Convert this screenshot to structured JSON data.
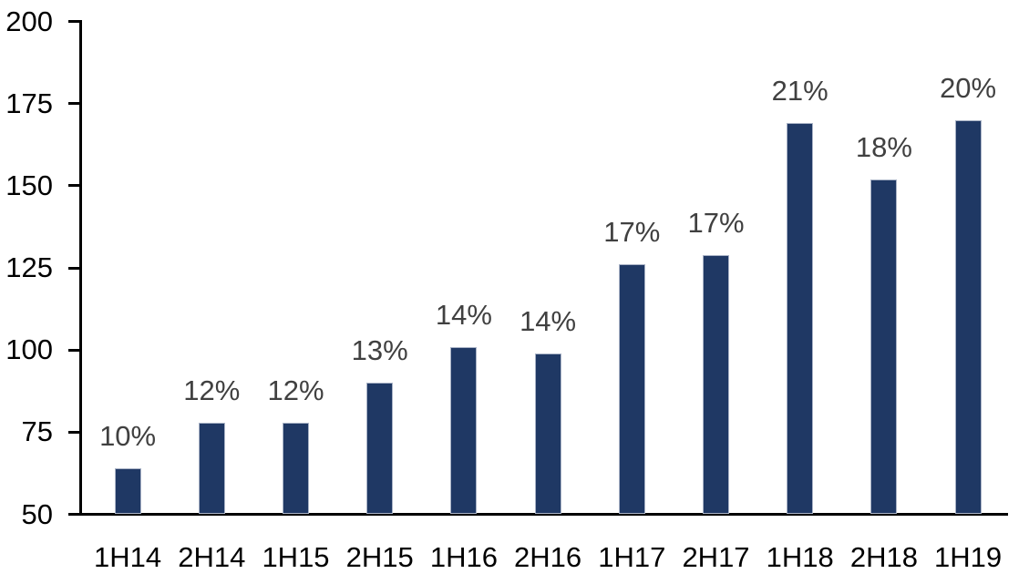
{
  "chart_data": {
    "type": "bar",
    "categories": [
      "1H14",
      "2H14",
      "1H15",
      "2H15",
      "1H16",
      "2H16",
      "1H17",
      "2H17",
      "1H18",
      "2H18",
      "1H19"
    ],
    "values": [
      64,
      78,
      78,
      90,
      101,
      99,
      126,
      129,
      169,
      152,
      170
    ],
    "bar_labels": [
      "10%",
      "12%",
      "12%",
      "13%",
      "14%",
      "14%",
      "17%",
      "17%",
      "21%",
      "18%",
      "20%"
    ],
    "title": "",
    "xlabel": "",
    "ylabel": "",
    "ylim": [
      50,
      200
    ],
    "yticks": [
      50,
      75,
      100,
      125,
      150,
      175,
      200
    ],
    "grid": false,
    "legend_position": "none",
    "colors": {
      "bar_fill": "#1f3864",
      "bar_edge": "#a9b3c6",
      "data_label": "#404040",
      "axis_line": "#000000",
      "tick_label": "#000000",
      "background": "#ffffff"
    }
  }
}
